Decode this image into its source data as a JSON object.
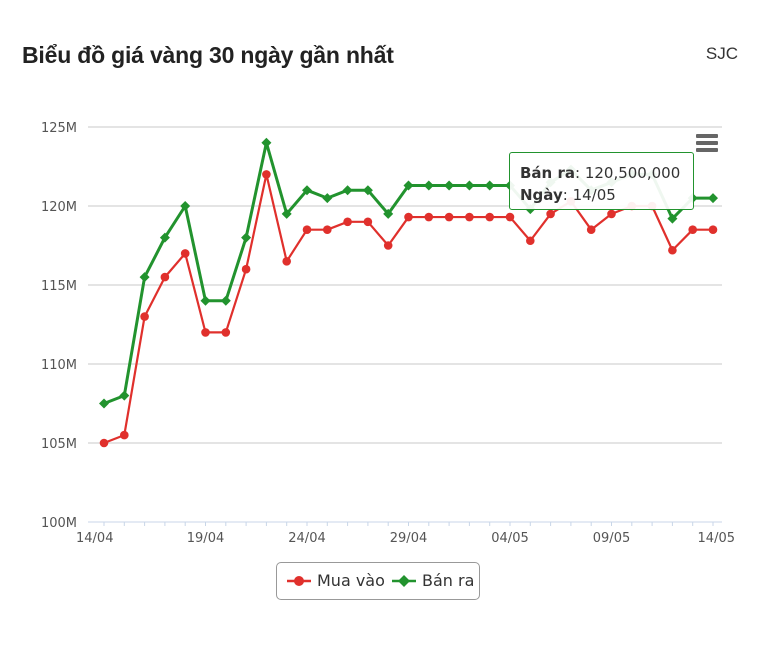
{
  "header": {
    "title": "Biểu đồ giá vàng 30 ngày gần nhất",
    "brand": "SJC"
  },
  "colors": {
    "buy": "#e0302c",
    "sell": "#22932e",
    "grid": "#c8c8c8",
    "axis_text": "#555555",
    "x_axis": "#c8d6e8"
  },
  "icons": {
    "menu": "hamburger-menu-icon"
  },
  "tooltip": {
    "series_label": "Bán ra",
    "value": "120,500,000",
    "date_label": "Ngày",
    "date_value": "14/05"
  },
  "chart_data": {
    "type": "line",
    "title": "Biểu đồ giá vàng 30 ngày gần nhất",
    "ylim": [
      100000000,
      125000000
    ],
    "y_ticks": [
      {
        "value": 100000000,
        "label": "100M"
      },
      {
        "value": 105000000,
        "label": "105M"
      },
      {
        "value": 110000000,
        "label": "110M"
      },
      {
        "value": 115000000,
        "label": "115M"
      },
      {
        "value": 120000000,
        "label": "120M"
      },
      {
        "value": 125000000,
        "label": "125M"
      }
    ],
    "x_ticks": [
      "14/04",
      "19/04",
      "24/04",
      "29/04",
      "04/05",
      "09/05",
      "14/05"
    ],
    "x": [
      "14/04",
      "15/04",
      "16/04",
      "17/04",
      "18/04",
      "19/04",
      "20/04",
      "21/04",
      "22/04",
      "23/04",
      "24/04",
      "25/04",
      "26/04",
      "27/04",
      "28/04",
      "29/04",
      "30/04",
      "01/05",
      "02/05",
      "03/05",
      "04/05",
      "05/05",
      "06/05",
      "07/05",
      "08/05",
      "09/05",
      "10/05",
      "11/05",
      "12/05",
      "13/05",
      "14/05"
    ],
    "grid": true,
    "legend_position": "bottom-center",
    "series": [
      {
        "name": "Mua vào",
        "marker": "circle",
        "color": "#e0302c",
        "values": [
          105000000,
          105500000,
          113000000,
          115500000,
          117000000,
          112000000,
          112000000,
          116000000,
          122000000,
          116500000,
          118500000,
          118500000,
          119000000,
          119000000,
          117500000,
          119300000,
          119300000,
          119300000,
          119300000,
          119300000,
          119300000,
          117800000,
          119500000,
          120300000,
          118500000,
          119500000,
          120000000,
          120000000,
          117200000,
          118500000,
          118500000
        ]
      },
      {
        "name": "Bán ra",
        "marker": "diamond",
        "color": "#22932e",
        "values": [
          107500000,
          108000000,
          115500000,
          118000000,
          120000000,
          114000000,
          114000000,
          118000000,
          124000000,
          119500000,
          121000000,
          120500000,
          121000000,
          121000000,
          119500000,
          121300000,
          121300000,
          121300000,
          121300000,
          121300000,
          121300000,
          119800000,
          121500000,
          122300000,
          121000000,
          121500000,
          122000000,
          122000000,
          119200000,
          120500000,
          120500000
        ]
      }
    ]
  }
}
